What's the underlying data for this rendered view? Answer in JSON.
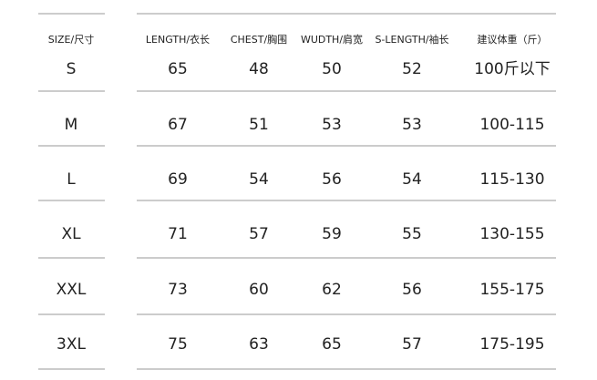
{
  "table": {
    "header": [
      "SIZE/尺寸",
      "LENGTH/衣长",
      "CHEST/胸围",
      "WUDTH/肩宽",
      "S-LENGTH/袖长",
      "建议体重（斤）"
    ],
    "rows": [
      [
        "S",
        65,
        48,
        50,
        52,
        "100斤以下"
      ],
      [
        "M",
        67,
        51,
        53,
        53,
        "100-115"
      ],
      [
        "L",
        69,
        54,
        56,
        54,
        "115-130"
      ],
      [
        "XL",
        71,
        57,
        59,
        55,
        "130-155"
      ],
      [
        "XXL",
        73,
        60,
        62,
        56,
        "155-175"
      ],
      [
        "3XL",
        75,
        63,
        65,
        57,
        "175-195"
      ]
    ]
  }
}
